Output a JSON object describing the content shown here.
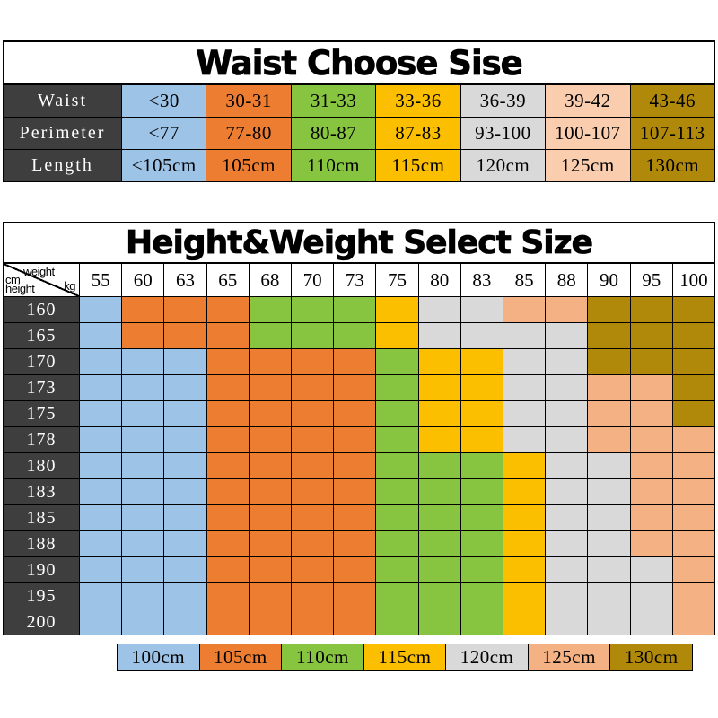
{
  "color_key": {
    "B": "#9DC3E6",
    "O": "#ED7D31",
    "G": "#87C540",
    "Y": "#FBBF00",
    "E": "#D9D9D9",
    "P": "#F4B183",
    "PL": "#F9CDAD",
    "K": "#B0890B",
    "DARK": "#3E3E3E"
  },
  "chart_data": [
    {
      "type": "table",
      "title": "Waist Choose Sise",
      "column_colors": [
        "B",
        "O",
        "G",
        "Y",
        "E",
        "PL",
        "K"
      ],
      "rows": [
        {
          "label": "Waist",
          "values": [
            "<30",
            "30-31",
            "31-33",
            "33-36",
            "36-39",
            "39-42",
            "43-46"
          ]
        },
        {
          "label": "Perimeter",
          "values": [
            "<77",
            "77-80",
            "80-87",
            "87-83",
            "93-100",
            "100-107",
            "107-113"
          ]
        },
        {
          "label": "Length",
          "values": [
            "<105cm",
            "105cm",
            "110cm",
            "115cm",
            "120cm",
            "125cm",
            "130cm"
          ]
        }
      ]
    },
    {
      "type": "table",
      "title": "Height&Weight Select Size",
      "corner": {
        "col_label": "weight",
        "col_unit": "kg",
        "row_unit": "cm",
        "row_label": "height"
      },
      "weight_columns": [
        "55",
        "60",
        "63",
        "65",
        "68",
        "70",
        "73",
        "75",
        "80",
        "83",
        "85",
        "88",
        "90",
        "95",
        "100"
      ],
      "height_rows": [
        "160",
        "165",
        "170",
        "173",
        "175",
        "178",
        "180",
        "183",
        "185",
        "188",
        "190",
        "195",
        "200"
      ],
      "cell_colors": [
        "BOOOGGGYEEPPKKK",
        "BOOOGGGYEEEEKKK",
        "BBBOOOOGYYEEKKK",
        "BBBOOOOGYYEEPPK",
        "BBBOOOOGYYEEPPK",
        "BBBOOOOGYYEEPPP",
        "BBBOOOOGGGYEEPP",
        "BBBOOOOGGGYEEPP",
        "BBBOOOOGGGYEEPP",
        "BBBOOOOGGGYEEPP",
        "BBBOOOOGGGYEEEP",
        "BBBOOOOGGGYEEEP",
        "BBBOOOOGGGYEEEP"
      ],
      "legend": [
        {
          "label": "100cm",
          "color": "B"
        },
        {
          "label": "105cm",
          "color": "O"
        },
        {
          "label": "110cm",
          "color": "G"
        },
        {
          "label": "115cm",
          "color": "Y"
        },
        {
          "label": "120cm",
          "color": "E"
        },
        {
          "label": "125cm",
          "color": "P"
        },
        {
          "label": "130cm",
          "color": "K"
        }
      ]
    }
  ]
}
